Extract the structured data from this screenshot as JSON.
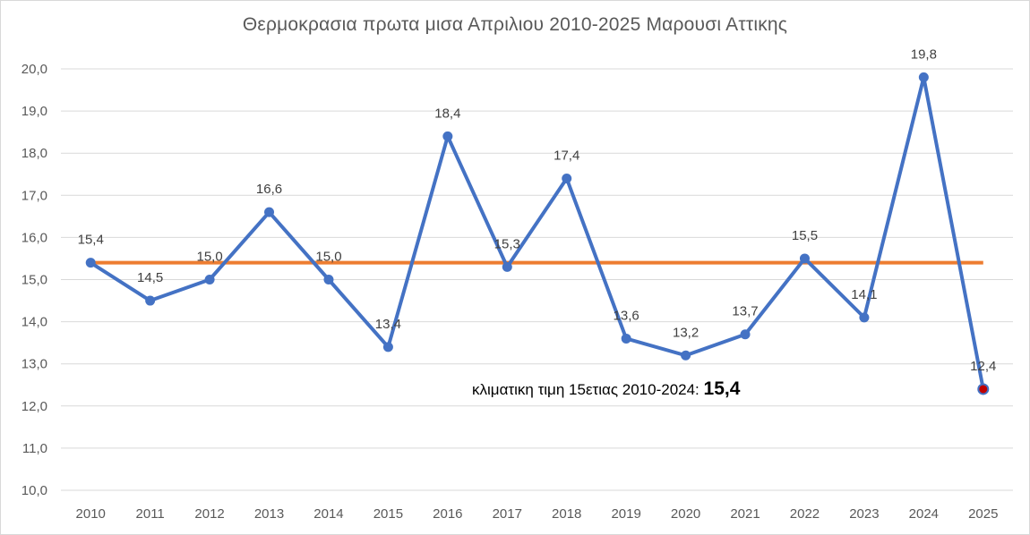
{
  "chart_data": {
    "type": "line",
    "title": "Θερμοκρασια πρωτα μισα Απριλιου 2010-2025 Μαρουσι Αττικης",
    "xlabel": "",
    "ylabel": "",
    "ylim": [
      10.0,
      20.0
    ],
    "ytick_step": 1.0,
    "grid": true,
    "categories": [
      "2010",
      "2011",
      "2012",
      "2013",
      "2014",
      "2015",
      "2016",
      "2017",
      "2018",
      "2019",
      "2020",
      "2021",
      "2022",
      "2023",
      "2024",
      "2025"
    ],
    "series": [
      {
        "values": [
          15.4,
          14.5,
          15.0,
          16.6,
          15.0,
          13.4,
          18.4,
          15.3,
          17.4,
          13.6,
          13.2,
          13.7,
          15.5,
          14.1,
          19.8,
          12.4
        ],
        "labels": [
          "15,4",
          "14,5",
          "15,0",
          "16,6",
          "15,0",
          "13,4",
          "18,4",
          "15,3",
          "17,4",
          "13,6",
          "13,2",
          "13,7",
          "15,5",
          "14,1",
          "19,8",
          "12,4"
        ],
        "color": "#4472c4",
        "highlight_last_color": "#c00000"
      }
    ],
    "reference_line": {
      "value": 15.4,
      "color": "#ed7d31"
    },
    "annotation": {
      "text": "κλιματικη τιμη 15ετιας 2010-2024: ",
      "value": "15,4"
    }
  }
}
